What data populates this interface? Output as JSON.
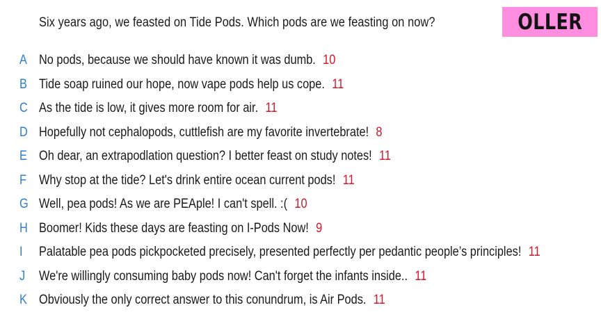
{
  "header": {
    "question": "Six years ago, we feasted on Tide Pods. Which pods are we feasting on now?",
    "badge": "OLLER",
    "badge_color": "#ff8ee0"
  },
  "colors": {
    "letter": "#2b7fd6",
    "score": "#d1172b",
    "text": "#1a1a1a"
  },
  "answers": [
    {
      "letter": "A",
      "text": "No pods, because we should have known it was dumb.",
      "score": "10"
    },
    {
      "letter": "B",
      "text": "Tide soap ruined our hope, now vape pods help us cope.",
      "score": "11"
    },
    {
      "letter": "C",
      "text": "As the tide is low, it gives more room for air.",
      "score": "11"
    },
    {
      "letter": "D",
      "text": "Hopefully not cephalopods, cuttlefish are my favorite invertebrate!",
      "score": "8"
    },
    {
      "letter": "E",
      "text": "Oh dear, an extrapodlation question? I better feast on study notes!",
      "score": "11"
    },
    {
      "letter": "F",
      "text": "Why stop at the tide? Let's drink entire ocean current pods!",
      "score": "11"
    },
    {
      "letter": "G",
      "text": "Well, pea pods! As we are PEAple! I can't spell. :(",
      "score": "10"
    },
    {
      "letter": "H",
      "text": "Boomer! Kids these days are feasting on I-Pods Now!",
      "score": "9"
    },
    {
      "letter": "I",
      "text": "Palatable pea pods pickpocketed precisely, presented perfectly per pedantic people’s principles!",
      "score": "11"
    },
    {
      "letter": "J",
      "text": "We're willingly consuming baby pods now! Can't forget the infants inside..",
      "score": "11"
    },
    {
      "letter": "K",
      "text": "Obviously the only correct answer to this conundrum, is Air Pods.",
      "score": "11"
    }
  ]
}
